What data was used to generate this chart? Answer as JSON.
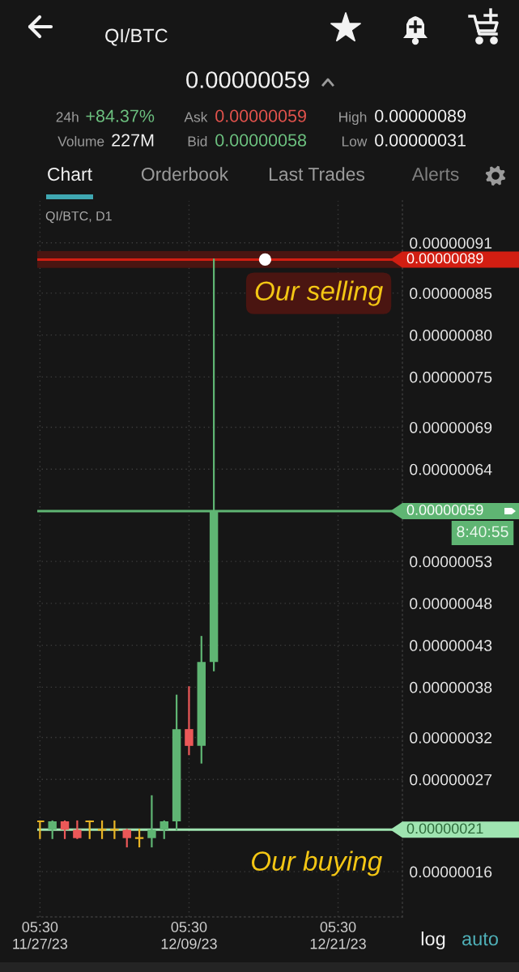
{
  "chart_data": {
    "type": "candlestick",
    "title": "QI/BTC",
    "x": [
      "2023-11-27T05:30",
      "2023-11-28T05:30",
      "2023-11-29T05:30",
      "2023-11-30T05:30",
      "2023-12-01T05:30",
      "2023-12-02T05:30",
      "2023-12-03T05:30",
      "2023-12-04T05:30",
      "2023-12-05T05:30",
      "2023-12-06T05:30",
      "2023-12-07T05:30",
      "2023-12-08T05:30",
      "2023-12-09T05:30",
      "2023-12-10T05:30",
      "2023-12-11T05:30"
    ],
    "ohlc": [
      [
        2.2e-07,
        2.2e-07,
        2e-07,
        2.2e-07
      ],
      [
        2.1e-07,
        2.2e-07,
        2e-07,
        2.2e-07
      ],
      [
        2.2e-07,
        2.2e-07,
        2e-07,
        2.1e-07
      ],
      [
        2.1e-07,
        2.2e-07,
        2e-07,
        2e-07
      ],
      [
        2.2e-07,
        2.2e-07,
        2e-07,
        2.2e-07
      ],
      [
        2.1e-07,
        2.2e-07,
        2e-07,
        2.1e-07
      ],
      [
        2.1e-07,
        2.2e-07,
        2e-07,
        2.1e-07
      ],
      [
        2.1e-07,
        2.1e-07,
        1.9e-07,
        2e-07
      ],
      [
        2e-07,
        2.1e-07,
        1.9e-07,
        2e-07
      ],
      [
        2e-07,
        2.5e-07,
        1.9e-07,
        2.1e-07
      ],
      [
        2.1e-07,
        2.2e-07,
        2e-07,
        2.2e-07
      ],
      [
        2.2e-07,
        3.7e-07,
        2.1e-07,
        3.3e-07
      ],
      [
        3.3e-07,
        3.8e-07,
        3e-07,
        3.1e-07
      ],
      [
        3.1e-07,
        4.4e-07,
        2.9e-07,
        4.1e-07
      ],
      [
        4.1e-07,
        8.9e-07,
        4e-07,
        5.9e-07
      ]
    ],
    "colors": [
      "#e8b425",
      "#5fb573",
      "#eb5858",
      "#eb5858",
      "#e8b425",
      "#e8b425",
      "#e8b425",
      "#eb5858",
      "#e8b425",
      "#5fb573",
      "#5fb573",
      "#5fb573",
      "#eb5858",
      "#5fb573",
      "#5fb573"
    ],
    "xlim": [
      "2023-11-27T00:15",
      "2023-12-26T09:50"
    ],
    "xticks": [
      {
        "value": "2023-11-27T05:30",
        "label": "05:30\n11/27/23"
      },
      {
        "value": "2023-12-09T05:30",
        "label": "05:30\n12/09/23"
      },
      {
        "value": "2023-12-21T05:30",
        "label": "05:30\n12/21/23"
      }
    ],
    "ylim": [
      1.06e-07,
      9.6e-07
    ],
    "yticks": [
      {
        "value": 1.6e-07,
        "label": "0.00000016"
      },
      {
        "value": 2.7e-07,
        "label": "0.00000027"
      },
      {
        "value": 3.2e-07,
        "label": "0.00000032"
      },
      {
        "value": 3.8e-07,
        "label": "0.00000038"
      },
      {
        "value": 4.3e-07,
        "label": "0.00000043"
      },
      {
        "value": 4.8e-07,
        "label": "0.00000048"
      },
      {
        "value": 5.3e-07,
        "label": "0.00000053"
      },
      {
        "value": 6.4e-07,
        "label": "0.00000064"
      },
      {
        "value": 6.9e-07,
        "label": "0.00000069"
      },
      {
        "value": 7.5e-07,
        "label": "0.00000075"
      },
      {
        "value": 8e-07,
        "label": "0.00000080"
      },
      {
        "value": 8.5e-07,
        "label": "0.00000085"
      },
      {
        "value": 9.1e-07,
        "label": "0.00000091"
      }
    ],
    "grid": true,
    "ref_lines": [
      {
        "axis": "y",
        "value": 8.9e-07,
        "label": "0.00000089",
        "color": "#d21e12"
      },
      {
        "axis": "y",
        "value": 5.9e-07,
        "label": "0.00000059",
        "color": "#5fb573"
      },
      {
        "axis": "y",
        "value": 2.1e-07,
        "label": "0.00000021",
        "color": "#9fe4b1"
      }
    ],
    "bands": [
      {
        "axis": "y",
        "from": 8.8e-07,
        "to": 9e-07,
        "color": "#4a1511"
      }
    ],
    "annotations": [
      "0.00000059",
      "24h",
      "+84.37%",
      "Ask",
      "0.00000059",
      "High",
      "0.00000089",
      "Volume",
      "227M",
      "Bid",
      "0.00000058",
      "Low",
      "0.00000031",
      "Chart",
      "Orderbook",
      "Last Trades",
      "Alerts",
      "QI/BTC, D1",
      {
        "text": "Our selling",
        "x": "2023-12-19T16:00",
        "y": 8.9e-07
      },
      {
        "text": "Our buying",
        "x": "2023-12-19T11:30",
        "y": 2.1e-07
      },
      "8:40:55",
      "log",
      "auto"
    ]
  }
}
